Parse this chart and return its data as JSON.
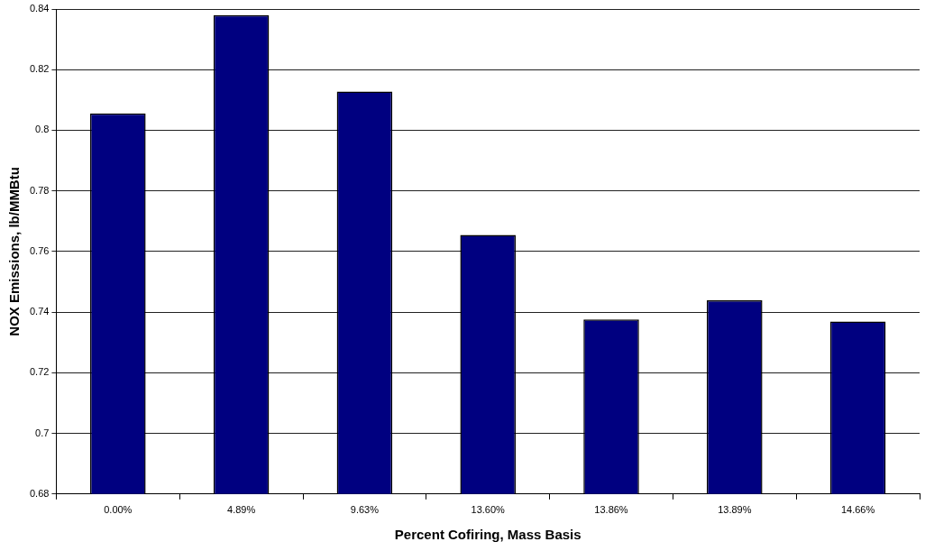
{
  "chart_data": {
    "type": "bar",
    "xlabel": "Percent Cofiring, Mass Basis",
    "ylabel": "NOX Emissions, lb/MMBtu",
    "categories": [
      "0.00%",
      "4.89%",
      "9.63%",
      "13.60%",
      "13.86%",
      "13.89%",
      "14.66%"
    ],
    "values": [
      0.8056,
      0.838,
      0.8128,
      0.7655,
      0.7376,
      0.7439,
      0.7369
    ],
    "color": "#000080",
    "ylim": [
      0.68,
      0.84
    ],
    "yticks": [
      0.68,
      0.7,
      0.72,
      0.74,
      0.76,
      0.78,
      0.8,
      0.82,
      0.84
    ],
    "grid": "y",
    "legend": false
  }
}
